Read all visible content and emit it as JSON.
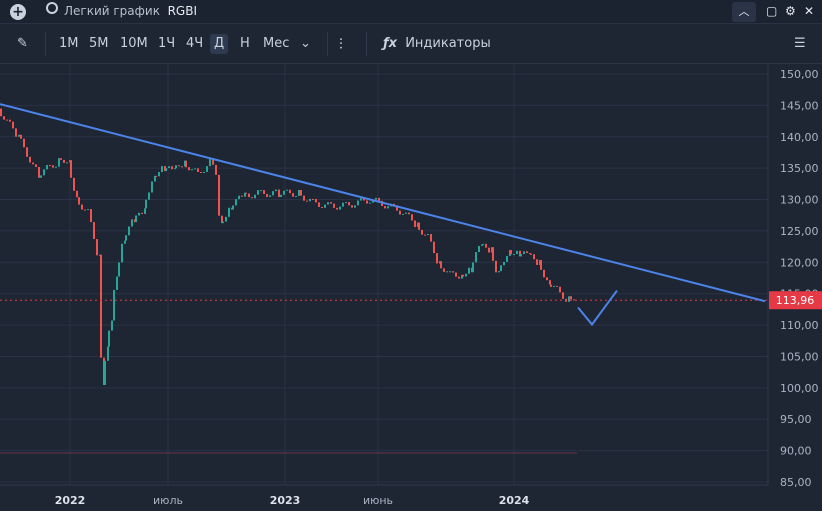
{
  "app": {
    "search_label": "Легкий график",
    "ticker": "RGBI"
  },
  "toolbar": {
    "timeframes": [
      "1М",
      "5М",
      "10М",
      "1Ч",
      "4Ч",
      "Д",
      "Н",
      "Мес"
    ],
    "active_timeframe": "Д",
    "indicators_label": "Индикаторы"
  },
  "icons": {
    "add": "plus-circle-icon",
    "search": "search-icon",
    "pencil": "pencil-icon",
    "dropdown": "chevron-down-icon",
    "candles": "candlestick-icon",
    "fx": "fx-icon",
    "collapse": "chevron-up-icon",
    "window": "square-icon",
    "settings": "gear-icon",
    "close": "close-icon",
    "menu": "menu-x-icon"
  },
  "colors": {
    "background": "#1e2533",
    "up": "#26a69a",
    "down": "#ef5350",
    "trendline": "#4c84ea",
    "price_label_bg": "#e53945"
  },
  "chart_data": {
    "type": "line",
    "y_ticks": [
      "150,00",
      "145,00",
      "140,00",
      "135,00",
      "130,00",
      "125,00",
      "120,00",
      "115,00",
      "110,00",
      "105,00",
      "100,00",
      "95,00",
      "90,00",
      "85,00"
    ],
    "x_ticks": [
      "2022",
      "июль",
      "2023",
      "июнь",
      "2024"
    ],
    "ylim": [
      85,
      150
    ],
    "last_price": "113,96",
    "series": [
      {
        "points": [
          [
            0,
            144.5
          ],
          [
            20,
            140
          ],
          [
            40,
            134
          ],
          [
            60,
            136
          ],
          [
            70,
            136.5
          ],
          [
            78,
            130
          ],
          [
            90,
            128
          ],
          [
            100,
            121
          ],
          [
            104,
            100
          ],
          [
            108,
            106
          ],
          [
            113,
            111
          ],
          [
            118,
            118
          ],
          [
            125,
            124
          ],
          [
            135,
            126.5
          ],
          [
            145,
            128
          ],
          [
            155,
            134
          ],
          [
            165,
            135
          ],
          [
            175,
            134.5
          ],
          [
            185,
            136
          ],
          [
            200,
            134
          ],
          [
            212,
            136
          ],
          [
            218,
            134
          ],
          [
            222,
            126
          ],
          [
            232,
            129
          ],
          [
            245,
            130.5
          ],
          [
            260,
            131
          ],
          [
            280,
            131
          ],
          [
            300,
            131
          ],
          [
            315,
            129.5
          ],
          [
            330,
            129
          ],
          [
            345,
            129
          ],
          [
            360,
            129.5
          ],
          [
            372,
            130
          ],
          [
            390,
            129
          ],
          [
            405,
            128
          ],
          [
            418,
            126
          ],
          [
            430,
            124
          ],
          [
            440,
            120
          ],
          [
            452,
            118
          ],
          [
            462,
            118
          ],
          [
            472,
            119
          ],
          [
            482,
            122.5
          ],
          [
            492,
            122
          ],
          [
            500,
            118
          ],
          [
            510,
            122
          ],
          [
            520,
            121.5
          ],
          [
            530,
            121
          ],
          [
            540,
            120
          ],
          [
            550,
            117
          ],
          [
            562,
            115
          ],
          [
            570,
            114
          ],
          [
            575,
            113.96
          ]
        ]
      }
    ],
    "annotations": [
      {
        "type": "trendline",
        "points": [
          [
            0,
            145.2
          ],
          [
            765,
            113.8
          ]
        ]
      },
      {
        "type": "path",
        "points": [
          [
            578,
            112.8
          ],
          [
            592,
            110.1
          ],
          [
            617,
            115.5
          ]
        ]
      }
    ]
  }
}
